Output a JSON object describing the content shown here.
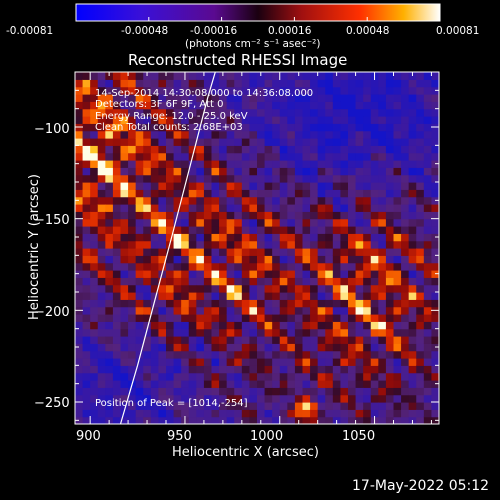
{
  "colorbar": {
    "ticks": [
      "-0.00081",
      "-0.00048",
      "-0.00016",
      "0.00016",
      "0.00048",
      "0.00081"
    ],
    "unit_label": "(photons cm⁻² s⁻¹ asec⁻²)",
    "min": -0.00081,
    "max": 0.00081
  },
  "plot": {
    "title": "Reconstructed RHESSI Image",
    "annotations": [
      "14-Sep-2014 14:30:08.000 to 14:36:08.000",
      "Detectors: 3F 6F 9F, Att 0",
      "Energy Range: 12.0 - 25.0 keV",
      "Clean      Total counts: 2.68E+03"
    ],
    "peak_label": "Position of Peak = [1014,-254]",
    "footer_date": "17-May-2022 05:12"
  },
  "chart_data": {
    "type": "heatmap",
    "title": "Reconstructed RHESSI Image",
    "xlabel": "Heliocentric X (arcsec)",
    "ylabel": "Heliocentric Y (arcsec)",
    "xlim": [
      892,
      1084
    ],
    "ylim": [
      -262,
      -70
    ],
    "x_ticks": [
      900,
      950,
      1000,
      1050
    ],
    "y_ticks": [
      -100,
      -150,
      -200,
      -250
    ],
    "x_tick_labels": [
      "900",
      "950",
      "1000",
      "1050"
    ],
    "y_tick_labels": [
      "−100",
      "−150",
      "−200",
      "−250"
    ],
    "peak": [
      1014,
      -254
    ],
    "limb_curve": [
      [
        916,
        -262
      ],
      [
        925,
        -230
      ],
      [
        934,
        -195
      ],
      [
        943,
        -160
      ],
      [
        952,
        -124
      ],
      [
        962,
        -84
      ],
      [
        966,
        -70
      ]
    ],
    "colormap": "blue-purple-red-yellow-white"
  }
}
